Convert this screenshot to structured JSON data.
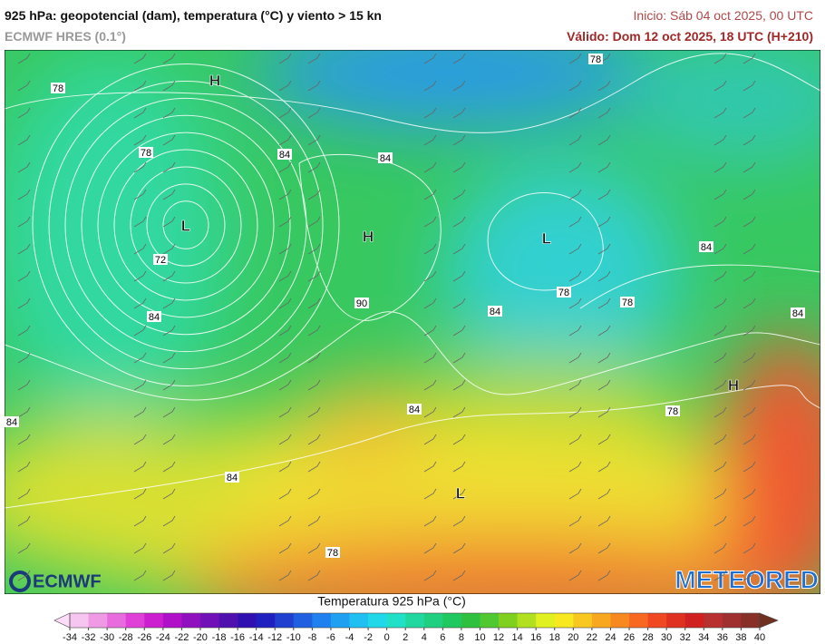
{
  "header": {
    "title": "925 hPa: geopotencial (dam), temperatura (°C) y viento > 15 kn",
    "model": "ECMWF HRES (0.1°)",
    "init": "Inicio: Sáb 04 oct 2025, 00 UTC",
    "valid": "Válido: Dom 12 oct 2025, 18 UTC (H+210)"
  },
  "map": {
    "contour_labels": [
      78,
      78,
      84,
      84,
      78,
      72,
      84,
      90,
      78,
      78,
      84,
      84,
      84,
      84,
      78,
      84,
      84,
      78
    ],
    "pressure_centers": [
      "H",
      "L",
      "H",
      "L",
      "H",
      "L"
    ],
    "logo_left": "ECMWF",
    "logo_right": "METEORED"
  },
  "colorbar": {
    "title": "Temperatura 925 hPa (°C)",
    "ticks": [
      -34,
      -32,
      -30,
      -28,
      -26,
      -24,
      -22,
      -20,
      -18,
      -16,
      -14,
      -12,
      -10,
      -8,
      -6,
      -4,
      -2,
      0,
      2,
      4,
      6,
      8,
      10,
      12,
      14,
      16,
      18,
      20,
      22,
      24,
      26,
      28,
      30,
      32,
      34,
      36,
      38,
      40
    ],
    "colors": [
      "#f7c6f0",
      "#f09ae6",
      "#e86cde",
      "#e040d8",
      "#cc20d0",
      "#b010c8",
      "#9010c0",
      "#7010b8",
      "#5010b0",
      "#3010b0",
      "#2020c0",
      "#2040d0",
      "#2060e0",
      "#2080f0",
      "#20a0f0",
      "#20c0f0",
      "#20d8e8",
      "#20e0c8",
      "#20d8a0",
      "#20d080",
      "#20c860",
      "#30c040",
      "#50c830",
      "#80d020",
      "#b0e020",
      "#e0f020",
      "#f8e820",
      "#f8c820",
      "#f8a820",
      "#f88820",
      "#f86820",
      "#f04820",
      "#e03020",
      "#d02020",
      "#b83030",
      "#a03030",
      "#883028"
    ],
    "under_color": "#fcdcf8",
    "over_color": "#703020"
  }
}
